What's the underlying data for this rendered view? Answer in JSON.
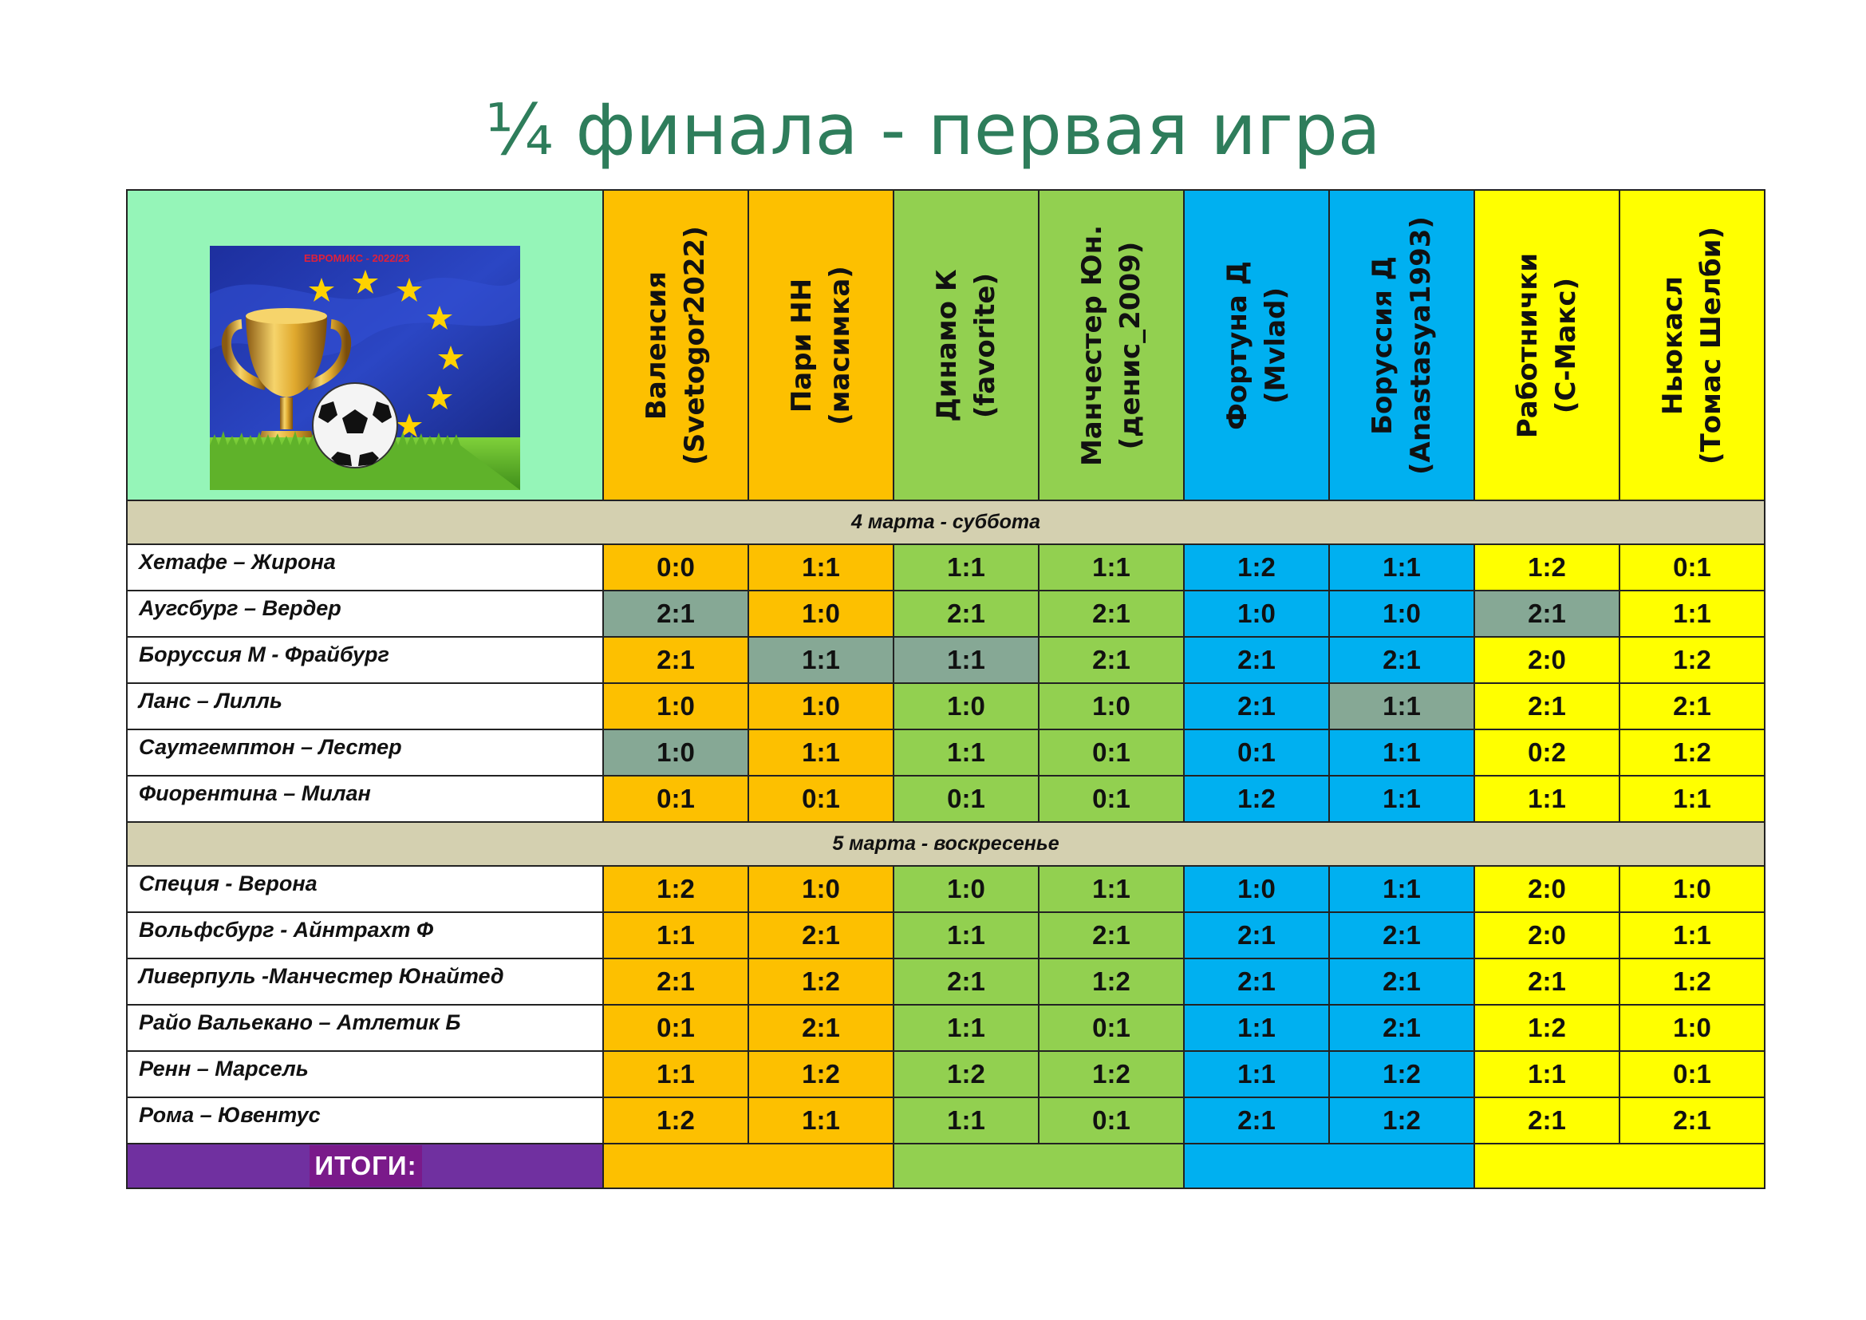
{
  "title": "¼ финала - первая игра",
  "logo": {
    "caption": "ЕВРОМИКС - 2022/23"
  },
  "columns": [
    {
      "team": "Валенсия",
      "player": "(Svetogor2022)"
    },
    {
      "team": "Пари НН",
      "player": "(масимка)"
    },
    {
      "team": "Динамо К",
      "player": "(favorite)"
    },
    {
      "team": "Манчестер Юн.",
      "player": "(денис_2009)"
    },
    {
      "team": "Фортуна Д",
      "player": "(Mvlad)"
    },
    {
      "team": "Боруссия Д",
      "player": "(Anastasya1993)"
    },
    {
      "team": "Работнички",
      "player": "(С-Макс)"
    },
    {
      "team": "Ньюкасл",
      "player": "(Томас Шелби)"
    }
  ],
  "days": [
    {
      "label": "4 марта - суббота",
      "matches": [
        {
          "name": "Хетафе – Жирона",
          "scores": [
            "0:0",
            "1:1",
            "1:1",
            "1:1",
            "1:2",
            "1:1",
            "1:2",
            "0:1"
          ]
        },
        {
          "name": "Аугсбург – Вердер",
          "scores": [
            "2:1",
            "1:0",
            "2:1",
            "2:1",
            "1:0",
            "1:0",
            "2:1",
            "1:1"
          ]
        },
        {
          "name": "Боруссия М - Фрайбург",
          "scores": [
            "2:1",
            "1:1",
            "1:1",
            "2:1",
            "2:1",
            "2:1",
            "2:0",
            "1:2"
          ]
        },
        {
          "name": "Ланс – Лилль",
          "scores": [
            "1:0",
            "1:0",
            "1:0",
            "1:0",
            "2:1",
            "1:1",
            "2:1",
            "2:1"
          ]
        },
        {
          "name": "Саутгемптон – Лестер",
          "scores": [
            "1:0",
            "1:1",
            "1:1",
            "0:1",
            "0:1",
            "1:1",
            "0:2",
            "1:2"
          ]
        },
        {
          "name": "Фиорентина – Милан",
          "scores": [
            "0:1",
            "0:1",
            "0:1",
            "0:1",
            "1:2",
            "1:1",
            "1:1",
            "1:1"
          ]
        }
      ]
    },
    {
      "label": "5 марта - воскресенье",
      "matches": [
        {
          "name": "Специя - Верона",
          "scores": [
            "1:2",
            "1:0",
            "1:0",
            "1:1",
            "1:0",
            "1:1",
            "2:0",
            "1:0"
          ]
        },
        {
          "name": "Вольфсбург - Айнтрахт Ф",
          "scores": [
            "1:1",
            "2:1",
            "1:1",
            "2:1",
            "2:1",
            "2:1",
            "2:0",
            "1:1"
          ]
        },
        {
          "name": "Ливерпуль -Манчестер Юнайтед",
          "scores": [
            "2:1",
            "1:2",
            "2:1",
            "1:2",
            "2:1",
            "2:1",
            "2:1",
            "1:2"
          ]
        },
        {
          "name": "Райо Вальекано – Атлетик Б",
          "scores": [
            "0:1",
            "2:1",
            "1:1",
            "0:1",
            "1:1",
            "2:1",
            "1:2",
            "1:0"
          ]
        },
        {
          "name": "Ренн – Марсель",
          "scores": [
            "1:1",
            "1:2",
            "1:2",
            "1:2",
            "1:1",
            "1:2",
            "1:1",
            "0:1"
          ]
        },
        {
          "name": "Рома – Ювентус",
          "scores": [
            "1:2",
            "1:1",
            "1:1",
            "0:1",
            "2:1",
            "1:2",
            "2:1",
            "2:1"
          ]
        }
      ]
    }
  ],
  "totals_label": "ИТОГИ:",
  "colors": {
    "title": "#2e7d5b",
    "pair_1": "#fdc000",
    "pair_2": "#92d050",
    "pair_3": "#00b0f0",
    "pair_4": "#ffff00",
    "highlighted_cell": "#86a895",
    "date_row": "#d4d0b0",
    "totals": "#7030a0"
  }
}
